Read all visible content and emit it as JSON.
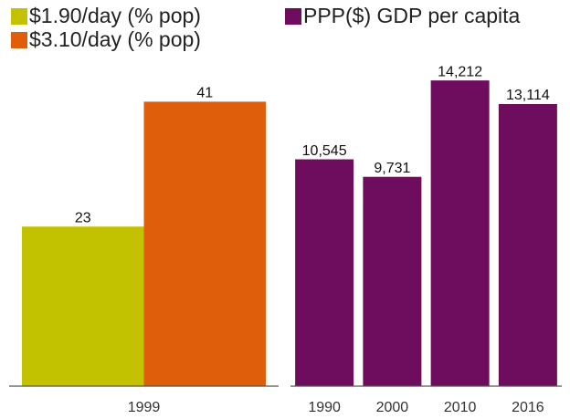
{
  "chart_data": [
    {
      "type": "bar",
      "categories": [
        "1999"
      ],
      "series": [
        {
          "name": "$1.90/day (% pop)",
          "color": "#c2c200",
          "values": [
            23
          ]
        },
        {
          "name": "$3.10/day (% pop)",
          "color": "#df5e0b",
          "values": [
            41
          ]
        }
      ],
      "ylim": [
        0,
        50
      ]
    },
    {
      "type": "bar",
      "categories": [
        "1990",
        "2000",
        "2010",
        "2016"
      ],
      "series": [
        {
          "name": "PPP($) GDP per capita",
          "color": "#6e0d5e",
          "values": [
            10545,
            9731,
            14212,
            13114
          ],
          "value_labels": [
            "10,545",
            "9,731",
            "14,212",
            "13,114"
          ]
        }
      ],
      "ylim": [
        0,
        16000
      ]
    }
  ]
}
